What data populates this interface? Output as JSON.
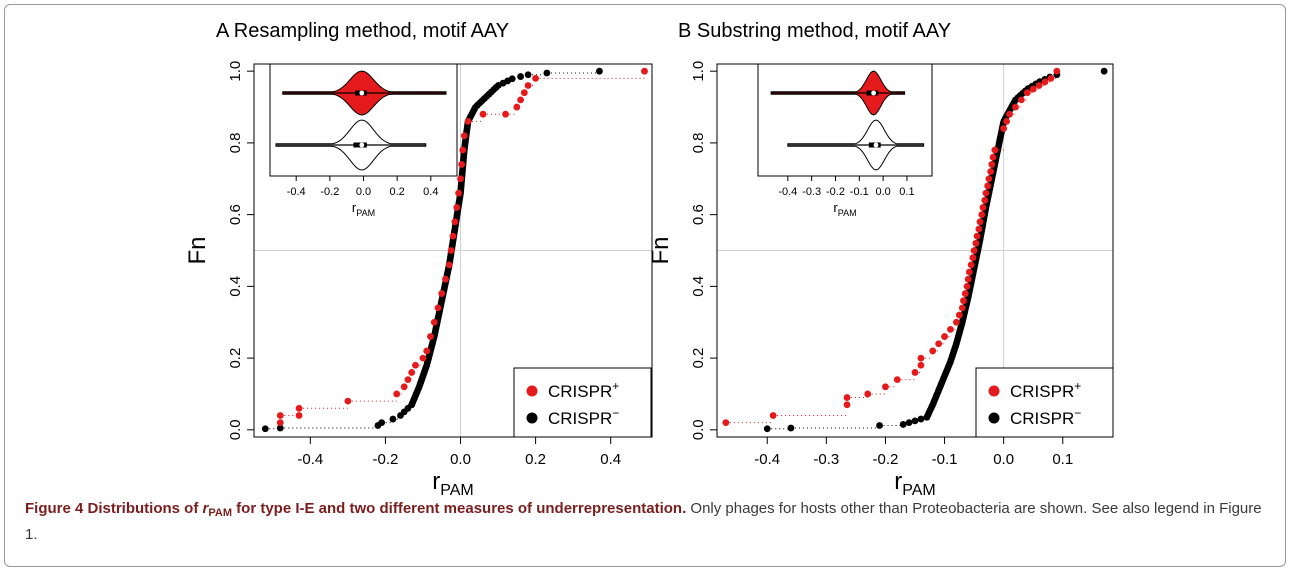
{
  "caption": {
    "prefix": "Figure 4 Distributions of ",
    "r_symbol": "r",
    "r_subscript": "PAM",
    "bold_rest": " for type I-E and two different measures of underrepresentation.",
    "text": " Only phages for hosts other than Proteobacteria are shown. See also legend in Figure 1."
  },
  "legend": {
    "crispr_plus_base": "CRISPR",
    "crispr_plus_sup": "+",
    "crispr_minus_base": "CRISPR",
    "crispr_minus_sup": "−"
  },
  "colors": {
    "crispr_plus": "#e41a1c",
    "crispr_minus": "#000000",
    "grid": "#d0d0d0"
  },
  "chart_data": [
    {
      "type": "scatter",
      "title": "A Resampling method, motif AAY",
      "xlabel": "r",
      "xlabel_sub": "PAM",
      "ylabel": "Fn",
      "xlim": [
        -0.55,
        0.51
      ],
      "ylim": [
        -0.02,
        1.02
      ],
      "xticks": [
        "-0.4",
        "-0.2",
        "0.0",
        "0.2",
        "0.4"
      ],
      "xtick_values": [
        -0.4,
        -0.2,
        0.0,
        0.2,
        0.4
      ],
      "yticks": [
        "0.0",
        "0.2",
        "0.4",
        "0.6",
        "0.8",
        "1.0"
      ],
      "ytick_values": [
        0,
        0.2,
        0.4,
        0.6,
        0.8,
        1.0
      ],
      "grid": {
        "vertical_at": [
          0
        ],
        "horizontal_at": [
          0.5
        ]
      },
      "legend_position": "bottom-right",
      "series": [
        {
          "name": "CRISPR+",
          "x": [
            -0.48,
            -0.48,
            -0.43,
            -0.43,
            -0.3,
            -0.17,
            -0.15,
            -0.14,
            -0.13,
            -0.12,
            -0.1,
            -0.09,
            -0.08,
            -0.07,
            -0.06,
            -0.05,
            -0.04,
            -0.03,
            -0.025,
            -0.02,
            -0.015,
            -0.01,
            -0.005,
            0.0,
            0.003,
            0.006,
            0.01,
            0.02,
            0.06,
            0.12,
            0.15,
            0.16,
            0.17,
            0.18,
            0.2,
            0.49
          ],
          "y": [
            0.02,
            0.04,
            0.04,
            0.06,
            0.08,
            0.1,
            0.12,
            0.14,
            0.16,
            0.18,
            0.2,
            0.22,
            0.26,
            0.3,
            0.34,
            0.38,
            0.42,
            0.46,
            0.5,
            0.54,
            0.58,
            0.62,
            0.66,
            0.7,
            0.74,
            0.78,
            0.82,
            0.86,
            0.88,
            0.88,
            0.9,
            0.92,
            0.94,
            0.96,
            0.98,
            1.0
          ]
        },
        {
          "name": "CRISPR-",
          "points": [
            [
              -0.52,
              0.003
            ],
            [
              -0.48,
              0.005
            ],
            [
              -0.22,
              0.012
            ],
            [
              -0.21,
              0.02
            ],
            [
              -0.18,
              0.03
            ],
            [
              -0.16,
              0.04
            ],
            [
              -0.15,
              0.05
            ],
            [
              -0.14,
              0.06
            ],
            [
              -0.13,
              0.07
            ]
          ],
          "curve": {
            "x": [
              -0.13,
              -0.11,
              -0.09,
              -0.07,
              -0.05,
              -0.03,
              -0.015,
              0.0,
              0.01,
              0.02,
              0.04,
              0.06,
              0.08,
              0.1,
              0.12,
              0.14,
              0.16
            ],
            "y": [
              0.07,
              0.12,
              0.18,
              0.26,
              0.36,
              0.46,
              0.56,
              0.66,
              0.78,
              0.86,
              0.9,
              0.92,
              0.94,
              0.96,
              0.97,
              0.98,
              0.985
            ],
            "n": 150
          },
          "tail": [
            [
              0.18,
              0.99
            ],
            [
              0.23,
              0.995
            ],
            [
              0.37,
              1.0
            ]
          ]
        }
      ],
      "inset": {
        "type": "violin",
        "xlim": [
          -0.52,
          0.52
        ],
        "xticks": [
          "-0.4",
          "-0.2",
          "0.0",
          "0.2",
          "0.4"
        ],
        "xtick_values": [
          -0.4,
          -0.2,
          0.0,
          0.2,
          0.4
        ],
        "xlabel": "r",
        "xlabel_sub": "PAM",
        "violins": [
          {
            "name": "CRISPR+",
            "fill": "#e41a1c",
            "min": -0.48,
            "max": 0.49,
            "median": -0.01,
            "q1": -0.05,
            "q3": 0.02,
            "spread": 0.07
          },
          {
            "name": "CRISPR-",
            "fill": "#ffffff",
            "min": -0.52,
            "max": 0.37,
            "median": -0.01,
            "q1": -0.06,
            "q3": 0.02,
            "spread": 0.07
          }
        ]
      }
    },
    {
      "type": "scatter",
      "title": "B Substring method, motif AAY",
      "xlabel": "r",
      "xlabel_sub": "PAM",
      "ylabel": "Fn",
      "xlim": [
        -0.485,
        0.185
      ],
      "ylim": [
        -0.02,
        1.02
      ],
      "xticks": [
        "-0.4",
        "-0.3",
        "-0.2",
        "-0.1",
        "0.0",
        "0.1"
      ],
      "xtick_values": [
        -0.4,
        -0.3,
        -0.2,
        -0.1,
        0.0,
        0.1
      ],
      "yticks": [
        "0.0",
        "0.2",
        "0.4",
        "0.6",
        "0.8",
        "1.0"
      ],
      "ytick_values": [
        0,
        0.2,
        0.4,
        0.6,
        0.8,
        1.0
      ],
      "grid": {
        "vertical_at": [
          0
        ],
        "horizontal_at": [
          0.5
        ]
      },
      "legend_position": "bottom-right",
      "series": [
        {
          "name": "CRISPR+",
          "x": [
            -0.47,
            -0.39,
            -0.265,
            -0.265,
            -0.23,
            -0.2,
            -0.18,
            -0.15,
            -0.14,
            -0.14,
            -0.12,
            -0.11,
            -0.1,
            -0.09,
            -0.08,
            -0.075,
            -0.07,
            -0.068,
            -0.065,
            -0.062,
            -0.06,
            -0.058,
            -0.055,
            -0.052,
            -0.05,
            -0.047,
            -0.045,
            -0.042,
            -0.04,
            -0.037,
            -0.035,
            -0.032,
            -0.03,
            -0.027,
            -0.025,
            -0.022,
            -0.02,
            -0.018,
            -0.015,
            0.0,
            0.005,
            0.01,
            0.02,
            0.03,
            0.04,
            0.05,
            0.06,
            0.07,
            0.08,
            0.09
          ],
          "y": [
            0.02,
            0.04,
            0.07,
            0.09,
            0.1,
            0.12,
            0.14,
            0.16,
            0.18,
            0.2,
            0.22,
            0.24,
            0.26,
            0.28,
            0.3,
            0.32,
            0.34,
            0.36,
            0.38,
            0.4,
            0.42,
            0.44,
            0.46,
            0.48,
            0.5,
            0.52,
            0.54,
            0.56,
            0.58,
            0.6,
            0.62,
            0.64,
            0.66,
            0.68,
            0.7,
            0.72,
            0.74,
            0.76,
            0.78,
            0.84,
            0.86,
            0.88,
            0.9,
            0.92,
            0.94,
            0.95,
            0.96,
            0.97,
            0.98,
            1.0
          ]
        },
        {
          "name": "CRISPR-",
          "points": [
            [
              -0.4,
              0.003
            ],
            [
              -0.36,
              0.005
            ],
            [
              -0.21,
              0.012
            ],
            [
              -0.17,
              0.015
            ],
            [
              -0.16,
              0.02
            ],
            [
              -0.15,
              0.025
            ],
            [
              -0.14,
              0.03
            ],
            [
              -0.13,
              0.035
            ]
          ],
          "curve": {
            "x": [
              -0.13,
              -0.12,
              -0.11,
              -0.1,
              -0.09,
              -0.08,
              -0.07,
              -0.06,
              -0.05,
              -0.04,
              -0.03,
              -0.02,
              -0.01,
              0.0,
              0.02,
              0.04,
              0.06,
              0.08,
              0.09
            ],
            "y": [
              0.035,
              0.07,
              0.11,
              0.15,
              0.19,
              0.24,
              0.3,
              0.37,
              0.45,
              0.53,
              0.62,
              0.7,
              0.78,
              0.86,
              0.92,
              0.95,
              0.97,
              0.985,
              0.99
            ],
            "n": 150
          },
          "tail": [
            [
              0.17,
              1.0
            ]
          ]
        }
      ],
      "inset": {
        "type": "violin",
        "xlim": [
          -0.5,
          0.18
        ],
        "xticks": [
          "-0.4",
          "-0.3",
          "-0.2",
          "-0.1",
          "0.0",
          "0.1"
        ],
        "xtick_values": [
          -0.4,
          -0.3,
          -0.2,
          -0.1,
          0.0,
          0.1
        ],
        "xlabel": "r",
        "xlabel_sub": "PAM",
        "violins": [
          {
            "name": "CRISPR+",
            "fill": "#e41a1c",
            "min": -0.47,
            "max": 0.09,
            "median": -0.04,
            "q1": -0.07,
            "q3": -0.02,
            "spread": 0.03
          },
          {
            "name": "CRISPR-",
            "fill": "#ffffff",
            "min": -0.4,
            "max": 0.17,
            "median": -0.03,
            "q1": -0.06,
            "q3": -0.01,
            "spread": 0.035
          }
        ]
      }
    }
  ]
}
